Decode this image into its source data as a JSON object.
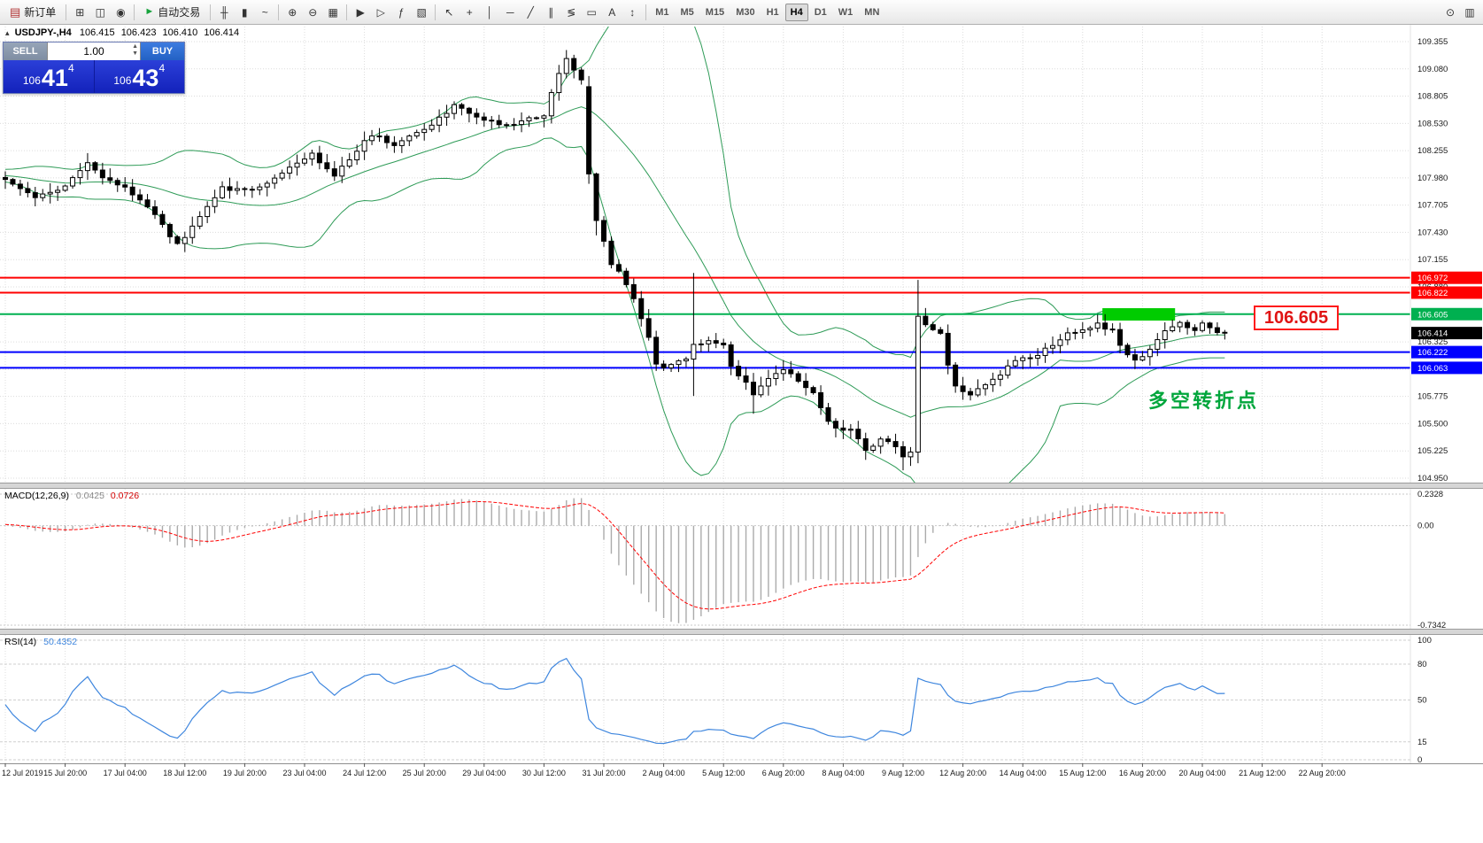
{
  "toolbar": {
    "new_order": {
      "label": "新订单",
      "glyph": "▤"
    },
    "auto_trading": {
      "label": "自动交易",
      "glyph": "►"
    },
    "quick_icons": [
      {
        "name": "charts-icon",
        "glyph": "⊞"
      },
      {
        "name": "profile-icon",
        "glyph": "◫"
      },
      {
        "name": "alerts-icon",
        "glyph": "◉"
      }
    ],
    "groups": [
      {
        "name": "chart-type-group",
        "icons": [
          {
            "name": "bar-chart-icon",
            "glyph": "╫"
          },
          {
            "name": "candlestick-chart-icon",
            "glyph": "▮"
          },
          {
            "name": "line-chart-icon",
            "glyph": "~"
          }
        ]
      },
      {
        "name": "zoom-group",
        "icons": [
          {
            "name": "zoom-in-icon",
            "glyph": "⊕"
          },
          {
            "name": "zoom-out-icon",
            "glyph": "⊖"
          },
          {
            "name": "tile-windows-icon",
            "glyph": "▦"
          }
        ]
      },
      {
        "name": "scroll-group",
        "icons": [
          {
            "name": "auto-scroll-icon",
            "glyph": "▶"
          },
          {
            "name": "chart-shift-icon",
            "glyph": "▷"
          },
          {
            "name": "indicators-icon",
            "glyph": "ƒ"
          },
          {
            "name": "templates-icon",
            "glyph": "▧"
          }
        ]
      },
      {
        "name": "drawing-group",
        "icons": [
          {
            "name": "cursor-icon",
            "glyph": "↖"
          },
          {
            "name": "crosshair-icon",
            "glyph": "+"
          },
          {
            "name": "vertical-line-icon",
            "glyph": "│"
          },
          {
            "name": "horizontal-line-icon",
            "glyph": "─"
          },
          {
            "name": "trendline-icon",
            "glyph": "╱"
          },
          {
            "name": "equidistant-channel-icon",
            "glyph": "∥"
          },
          {
            "name": "fibonacci-icon",
            "glyph": "≶"
          },
          {
            "name": "shapes-icon",
            "glyph": "▭"
          },
          {
            "name": "text-label-icon",
            "glyph": "A"
          },
          {
            "name": "arrows-icon",
            "glyph": "↕"
          }
        ]
      }
    ],
    "timeframes": [
      "M1",
      "M5",
      "M15",
      "M30",
      "H1",
      "H4",
      "D1",
      "W1",
      "MN"
    ],
    "active_timeframe": "H4",
    "right_icons": [
      {
        "name": "search-icon",
        "glyph": "⊙"
      },
      {
        "name": "data-window-icon",
        "glyph": "▥"
      }
    ]
  },
  "symbol_header": {
    "icon_glyph": "▴",
    "symbol": "USDJPY-,H4",
    "open": "106.415",
    "high": "106.423",
    "low": "106.410",
    "close": "106.414"
  },
  "trade_panel": {
    "sell_label": "SELL",
    "buy_label": "BUY",
    "volume": "1.00",
    "sell_price_prefix": "106",
    "sell_price_big": "41",
    "sell_price_sup": "4",
    "buy_price_prefix": "106",
    "buy_price_big": "43",
    "buy_price_sup": "4"
  },
  "price_scale": {
    "ticks": [
      "109.355",
      "109.080",
      "108.805",
      "108.530",
      "108.255",
      "107.980",
      "107.705",
      "107.430",
      "107.155",
      "106.880",
      "106.605",
      "106.325",
      "106.050",
      "105.775",
      "105.500",
      "105.225",
      "104.950"
    ],
    "labels": [
      {
        "text": "106.972",
        "price": 106.972,
        "bg": "#FF0000",
        "fg": "#FFFFFF",
        "name": "resistance-price-tag-1"
      },
      {
        "text": "106.822",
        "price": 106.822,
        "bg": "#FF0000",
        "fg": "#FFFFFF",
        "name": "resistance-price-tag-2"
      },
      {
        "text": "106.605",
        "price": 106.605,
        "bg": "#00B050",
        "fg": "#FFFFFF",
        "name": "pivot-price-tag"
      },
      {
        "text": "106.414",
        "price": 106.414,
        "bg": "#000000",
        "fg": "#FFFFFF",
        "name": "current-price-tag"
      },
      {
        "text": "106.222",
        "price": 106.222,
        "bg": "#0000FF",
        "fg": "#FFFFFF",
        "name": "support-price-tag-1"
      },
      {
        "text": "106.063",
        "price": 106.063,
        "bg": "#0000FF",
        "fg": "#FFFFFF",
        "name": "support-price-tag-2"
      }
    ]
  },
  "macd": {
    "name": "MACD(12,26,9)",
    "main_value": "0.0425",
    "signal_value": "0.0726",
    "scale_max": "0.2328",
    "scale_zero": "0.00",
    "scale_min": "-0.7342"
  },
  "rsi": {
    "name": "RSI(14)",
    "value": "50.4352",
    "levels": [
      "100",
      "80",
      "50",
      "15",
      "0"
    ]
  },
  "time_axis": {
    "labels": [
      "12 Jul 2019",
      "15 Jul 20:00",
      "17 Jul 04:00",
      "18 Jul 12:00",
      "19 Jul 20:00",
      "23 Jul 04:00",
      "24 Jul 12:00",
      "25 Jul 20:00",
      "29 Jul 04:00",
      "30 Jul 12:00",
      "31 Jul 20:00",
      "2 Aug 04:00",
      "5 Aug 12:00",
      "6 Aug 20:00",
      "8 Aug 04:00",
      "9 Aug 12:00",
      "12 Aug 20:00",
      "14 Aug 04:00",
      "15 Aug 12:00",
      "16 Aug 20:00",
      "20 Aug 04:00",
      "21 Aug 12:00",
      "22 Aug 20:00"
    ]
  },
  "annotations": {
    "big_price_label": "106.605",
    "cn_note": "多空转折点"
  },
  "chart_data": {
    "type": "candlestick",
    "symbol": "USDJPY",
    "timeframe": "H4",
    "candle_count": 164,
    "y_axis": {
      "top_price": 109.355,
      "bottom_price": 104.95
    },
    "indicators": [
      "Bollinger Bands(20,2)",
      "MACD(12,26,9)",
      "RSI(14)"
    ],
    "price_waypoints": [
      [
        0,
        107.95
      ],
      [
        4,
        107.78
      ],
      [
        8,
        107.9
      ],
      [
        11,
        108.12
      ],
      [
        13,
        108.0
      ],
      [
        18,
        107.78
      ],
      [
        23,
        107.3
      ],
      [
        25,
        107.5
      ],
      [
        29,
        107.88
      ],
      [
        33,
        107.85
      ],
      [
        38,
        108.08
      ],
      [
        41,
        108.22
      ],
      [
        44,
        108.0
      ],
      [
        49,
        108.42
      ],
      [
        52,
        108.32
      ],
      [
        56,
        108.45
      ],
      [
        60,
        108.72
      ],
      [
        63,
        108.6
      ],
      [
        67,
        108.5
      ],
      [
        69,
        108.55
      ],
      [
        72,
        108.62
      ],
      [
        74,
        109.05
      ],
      [
        75,
        109.18
      ],
      [
        77,
        108.95
      ],
      [
        78,
        108.55
      ],
      [
        79,
        107.62
      ],
      [
        80,
        107.32
      ],
      [
        81,
        107.12
      ],
      [
        83,
        106.92
      ],
      [
        84,
        106.75
      ],
      [
        85,
        106.55
      ],
      [
        86,
        106.38
      ],
      [
        87,
        106.12
      ],
      [
        88,
        106.05
      ],
      [
        89,
        106.1
      ],
      [
        91,
        106.15
      ],
      [
        92,
        106.3
      ],
      [
        94,
        106.35
      ],
      [
        96,
        106.28
      ],
      [
        97,
        106.1
      ],
      [
        99,
        105.9
      ],
      [
        100,
        105.78
      ],
      [
        102,
        105.95
      ],
      [
        104,
        106.05
      ],
      [
        106,
        105.95
      ],
      [
        108,
        105.8
      ],
      [
        110,
        105.52
      ],
      [
        112,
        105.42
      ],
      [
        113,
        105.46
      ],
      [
        115,
        105.22
      ],
      [
        117,
        105.35
      ],
      [
        119,
        105.28
      ],
      [
        120,
        105.16
      ],
      [
        121,
        105.2
      ],
      [
        122,
        106.58
      ],
      [
        123,
        106.52
      ],
      [
        125,
        106.42
      ],
      [
        126,
        106.1
      ],
      [
        127,
        105.88
      ],
      [
        129,
        105.8
      ],
      [
        131,
        105.9
      ],
      [
        133,
        106.0
      ],
      [
        134,
        106.1
      ],
      [
        136,
        106.15
      ],
      [
        138,
        106.2
      ],
      [
        140,
        106.3
      ],
      [
        142,
        106.4
      ],
      [
        144,
        106.45
      ],
      [
        146,
        106.5
      ],
      [
        148,
        106.45
      ],
      [
        149,
        106.3
      ],
      [
        151,
        106.12
      ],
      [
        152,
        106.18
      ],
      [
        154,
        106.35
      ],
      [
        155,
        106.45
      ],
      [
        157,
        106.5
      ],
      [
        159,
        106.45
      ],
      [
        160,
        106.5
      ],
      [
        161,
        106.46
      ],
      [
        162,
        106.42
      ],
      [
        163,
        106.41
      ]
    ],
    "special_candles": [
      {
        "i": 74,
        "h": 109.12
      },
      {
        "i": 75,
        "h": 109.27
      },
      {
        "i": 78,
        "o": 108.9,
        "c": 108.02,
        "l": 107.92
      },
      {
        "i": 79,
        "c": 107.55,
        "l": 107.4
      },
      {
        "i": 92,
        "h": 107.02,
        "l": 105.78
      },
      {
        "i": 100,
        "l": 105.6
      },
      {
        "i": 120,
        "l": 105.03
      },
      {
        "i": 122,
        "h": 106.95,
        "l": 105.1
      }
    ],
    "hlines": [
      {
        "price": 106.972,
        "color": "#FF0000",
        "width": 2
      },
      {
        "price": 106.822,
        "color": "#FF0000",
        "width": 2
      },
      {
        "price": 106.605,
        "color": "#00B050",
        "width": 2
      },
      {
        "price": 106.222,
        "color": "#0000FF",
        "width": 2
      },
      {
        "price": 106.063,
        "color": "#0000FF",
        "width": 2
      }
    ],
    "highlight_box": {
      "i0": 147,
      "i1": 156,
      "price_top": 106.665,
      "price_bottom": 106.54,
      "color": "#00CC00"
    },
    "colors": {
      "bollinger": "#2E9B57",
      "bull": "#FFFFFF",
      "bear": "#000000",
      "wick": "#000000",
      "macd_hist": "#ABABAB",
      "macd_signal": "#FF0000",
      "rsi": "#3E86DE"
    }
  }
}
